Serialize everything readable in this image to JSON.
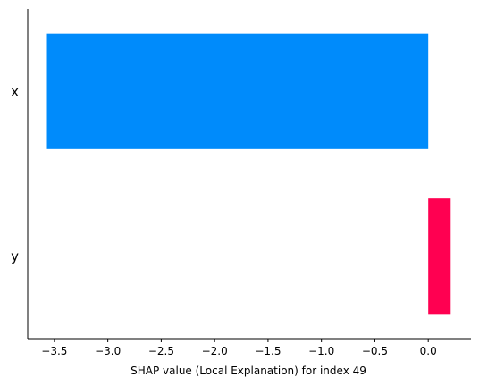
{
  "chart_data": {
    "type": "bar",
    "orientation": "horizontal",
    "categories": [
      "x",
      "y"
    ],
    "values": [
      -3.57,
      0.21
    ],
    "colors": {
      "negative": "#008bfb",
      "positive": "#ff0051"
    },
    "xlabel": "SHAP value (Local Explanation) for index 49",
    "ylabel": "",
    "xlim": [
      -3.75,
      0.4
    ],
    "xticks": [
      -3.5,
      -3.0,
      -2.5,
      -2.0,
      -1.5,
      -1.0,
      -0.5,
      0.0
    ],
    "xtick_labels": [
      "−3.5",
      "−3.0",
      "−2.5",
      "−2.0",
      "−1.5",
      "−1.0",
      "−0.5",
      "0.0"
    ],
    "grid": false,
    "legend": "none"
  }
}
